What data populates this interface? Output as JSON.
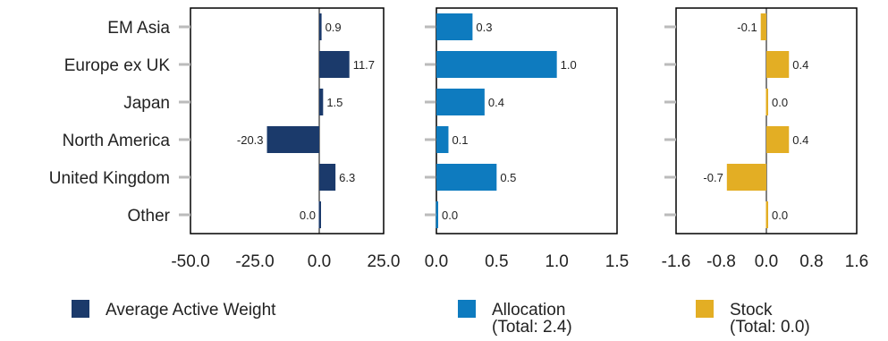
{
  "colors": {
    "active": "#1b3a6b",
    "allocation": "#0e7bbf",
    "stock": "#e3ae24",
    "axis": "#000000",
    "tick_mark": "#bbbbbb"
  },
  "legend": {
    "active": "Average Active Weight",
    "allocation": "Allocation",
    "allocation_total": "(Total: 2.4)",
    "stock": "Stock",
    "stock_total": "(Total: 0.0)"
  },
  "chart_data": [
    {
      "type": "bar",
      "orientation": "horizontal",
      "categories": [
        "EM Asia",
        "Europe ex UK",
        "Japan",
        "North America",
        "United Kingdom",
        "Other"
      ],
      "series": [
        {
          "name": "Average Active Weight",
          "values": [
            0.9,
            11.7,
            1.5,
            -20.3,
            6.3,
            0.0
          ]
        }
      ],
      "value_labels": [
        "0.9",
        "11.7",
        "1.5",
        "-20.3",
        "6.3",
        "0.0"
      ],
      "xlim": [
        -50,
        25
      ],
      "xticks": [
        "-50.0",
        "-25.0",
        "0.0",
        "25.0"
      ],
      "color": "#1b3a6b"
    },
    {
      "type": "bar",
      "orientation": "horizontal",
      "categories": [
        "EM Asia",
        "Europe ex UK",
        "Japan",
        "North America",
        "United Kingdom",
        "Other"
      ],
      "series": [
        {
          "name": "Allocation",
          "values": [
            0.3,
            1.0,
            0.4,
            0.1,
            0.5,
            0.0
          ]
        }
      ],
      "value_labels": [
        "0.3",
        "1.0",
        "0.4",
        "0.1",
        "0.5",
        "0.0"
      ],
      "xlim": [
        0,
        1.5
      ],
      "xticks": [
        "0.0",
        "0.5",
        "1.0",
        "1.5"
      ],
      "color": "#0e7bbf"
    },
    {
      "type": "bar",
      "orientation": "horizontal",
      "categories": [
        "EM Asia",
        "Europe ex UK",
        "Japan",
        "North America",
        "United Kingdom",
        "Other"
      ],
      "series": [
        {
          "name": "Stock",
          "values": [
            -0.1,
            0.4,
            0.0,
            0.4,
            -0.7,
            0.0
          ]
        }
      ],
      "value_labels": [
        "-0.1",
        "0.4",
        "0.0",
        "0.4",
        "-0.7",
        "0.0"
      ],
      "xlim": [
        -1.6,
        1.6
      ],
      "xticks": [
        "-1.6",
        "-0.8",
        "0.0",
        "0.8",
        "1.6"
      ],
      "color": "#e3ae24"
    }
  ]
}
